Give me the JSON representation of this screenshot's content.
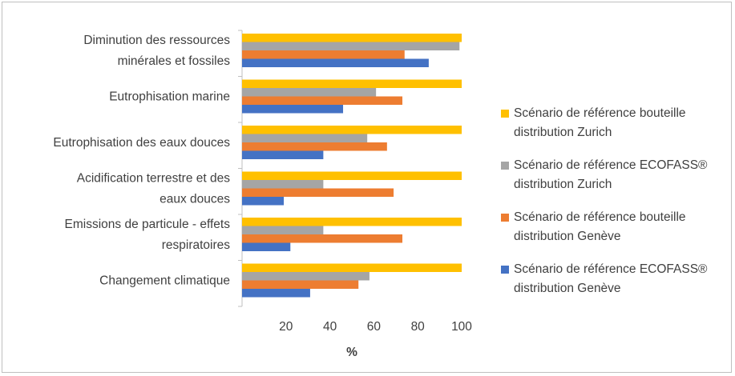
{
  "chart_data": {
    "type": "bar",
    "orientation": "horizontal",
    "title": "",
    "xlabel": "%",
    "ylabel": "",
    "xlim": [
      0,
      100
    ],
    "xticks": [
      20,
      40,
      60,
      80,
      100
    ],
    "grid": false,
    "legend_position": "right",
    "categories": [
      [
        "Diminution des ressources",
        "minérales et fossiles"
      ],
      [
        "Eutrophisation marine"
      ],
      [
        "Eutrophisation des eaux douces"
      ],
      [
        "Acidification terrestre et des",
        "eaux douces"
      ],
      [
        "Emissions de particule - effets",
        "respiratoires"
      ],
      [
        "Changement climatique"
      ]
    ],
    "series": [
      {
        "name": [
          "Scénario de référence bouteille",
          "distribution Zurich"
        ],
        "color": "#ffc000",
        "values": [
          100,
          100,
          100,
          100,
          100,
          100
        ]
      },
      {
        "name": [
          "Scénario de référence ECOFASS®",
          "distribution Zurich"
        ],
        "color": "#a5a5a5",
        "values": [
          99,
          61,
          57,
          37,
          37,
          58
        ]
      },
      {
        "name": [
          "Scénario de référence bouteille",
          "distribution Genève"
        ],
        "color": "#ed7d31",
        "values": [
          74,
          73,
          66,
          69,
          73,
          53
        ]
      },
      {
        "name": [
          "Scénario de référence ECOFASS®",
          "distribution Genève"
        ],
        "color": "#4472c4",
        "values": [
          85,
          46,
          37,
          19,
          22,
          31
        ]
      }
    ]
  }
}
